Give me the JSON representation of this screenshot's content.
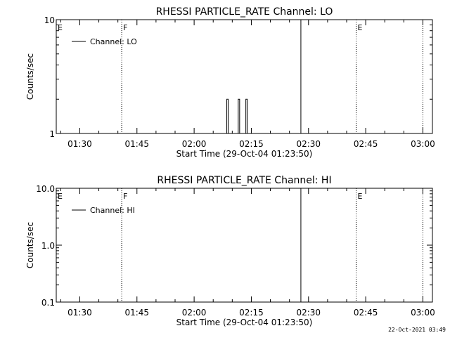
{
  "chart_data": [
    {
      "type": "line",
      "title": "RHESSI PARTICLE_RATE Channel: LO",
      "xlabel": "Start Time (29-Oct-04 01:23:50)",
      "ylabel": "Counts/sec",
      "yscale": "log",
      "ylim": [
        1,
        10
      ],
      "yticks": [
        1,
        10
      ],
      "ytick_labels": [
        "1",
        "10"
      ],
      "xlim": [
        "01:23:50",
        "03:02:30"
      ],
      "xticks": [
        "01:30",
        "01:45",
        "02:00",
        "02:15",
        "02:30",
        "02:45",
        "03:00"
      ],
      "legend": {
        "position": "top-left",
        "label": "Channel: LO"
      },
      "series": [
        {
          "name": "Channel: LO",
          "points": [
            {
              "x": "02:08:30",
              "y": 1
            },
            {
              "x": "02:08:45",
              "y": 2
            },
            {
              "x": "02:09:00",
              "y": 1
            },
            {
              "x": "02:11:30",
              "y": 1
            },
            {
              "x": "02:11:45",
              "y": 2
            },
            {
              "x": "02:12:00",
              "y": 1
            },
            {
              "x": "02:13:30",
              "y": 1
            },
            {
              "x": "02:13:45",
              "y": 2
            },
            {
              "x": "02:14:00",
              "y": 1
            }
          ]
        }
      ],
      "markers": [
        {
          "x": "01:23:50",
          "label": "E",
          "style": "dotted"
        },
        {
          "x": "01:41:00",
          "label": "F",
          "style": "dotted"
        },
        {
          "x": "02:28:00",
          "label": "",
          "style": "solid"
        },
        {
          "x": "02:42:30",
          "label": "E",
          "style": "dotted"
        },
        {
          "x": "03:00:00",
          "label": "",
          "style": "dotted"
        }
      ]
    },
    {
      "type": "line",
      "title": "RHESSI PARTICLE_RATE Channel: HI",
      "xlabel": "Start Time (29-Oct-04 01:23:50)",
      "ylabel": "Counts/sec",
      "yscale": "log",
      "ylim": [
        0.1,
        10
      ],
      "yticks": [
        0.1,
        1,
        10
      ],
      "ytick_labels": [
        "0.1",
        "1.0",
        "10.0"
      ],
      "xlim": [
        "01:23:50",
        "03:02:30"
      ],
      "xticks": [
        "01:30",
        "01:45",
        "02:00",
        "02:15",
        "02:30",
        "02:45",
        "03:00"
      ],
      "legend": {
        "position": "top-left",
        "label": "Channel: HI"
      },
      "series": [
        {
          "name": "Channel: HI",
          "points": []
        }
      ],
      "markers": [
        {
          "x": "01:23:50",
          "label": "E",
          "style": "dotted"
        },
        {
          "x": "01:41:00",
          "label": "F",
          "style": "dotted"
        },
        {
          "x": "02:28:00",
          "label": "",
          "style": "solid"
        },
        {
          "x": "02:42:30",
          "label": "E",
          "style": "dotted"
        },
        {
          "x": "03:00:00",
          "label": "",
          "style": "dotted"
        }
      ]
    }
  ],
  "footer": {
    "timestamp": "22-Oct-2021 03:49"
  }
}
